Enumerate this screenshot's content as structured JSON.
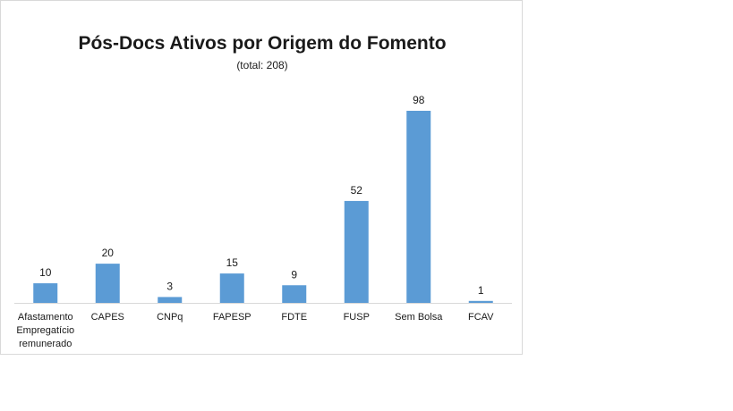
{
  "chart_data": {
    "type": "bar",
    "title": "Pós-Docs Ativos por Origem do Fomento",
    "subtitle": "(total: 208)",
    "categories": [
      [
        "Afastamento",
        "Empregatício",
        "remunerado"
      ],
      [
        "CAPES"
      ],
      [
        "CNPq"
      ],
      [
        "FAPESP"
      ],
      [
        "FDTE"
      ],
      [
        "FUSP"
      ],
      [
        "Sem Bolsa"
      ],
      [
        "FCAV"
      ]
    ],
    "values": [
      10,
      20,
      3,
      15,
      9,
      52,
      98,
      1
    ],
    "data_labels": [
      "10",
      "20",
      "3",
      "15",
      "9",
      "52",
      "98",
      "1"
    ],
    "ylim": [
      0,
      98
    ],
    "grid": false,
    "legend": "none",
    "colors": {
      "bar": "#5b9bd5",
      "axis": "#d9d9d9"
    }
  }
}
